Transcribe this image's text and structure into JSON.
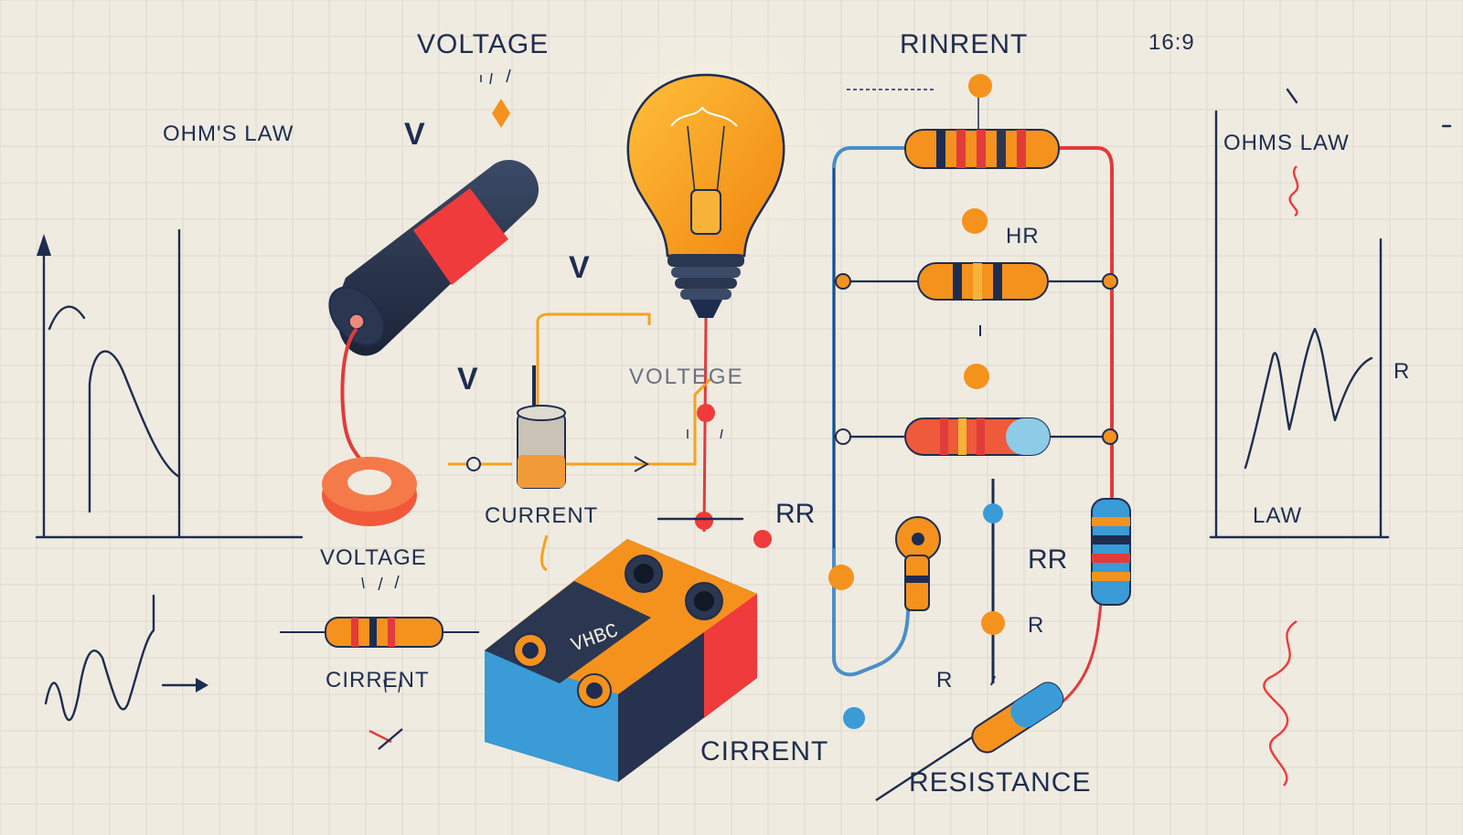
{
  "labels": {
    "voltage_top": "VOLTAGE",
    "rinrent_top": "RINRENT",
    "aspect": "16:9",
    "ohms_law_left": "OHM'S LAW",
    "ohms_law_right": "OHMS LAW",
    "v_top": "V",
    "v_mid": "V",
    "v_left": "V",
    "voltege": "VOLTEGE",
    "hr": "HR",
    "r_right": "R",
    "law": "LAW",
    "current": "CURRENT",
    "rr_mid": "RR",
    "voltage_bottom": "VOLTAGE",
    "cirrent_left": "CIRRENT",
    "rr_right": "RR",
    "r_small_1": "R",
    "r_small_2": "R",
    "cirrent_bottom": "CIRRENT",
    "resistance": "RESISTANCE",
    "battery_text": "VHBC"
  },
  "colors": {
    "background": "#efebe1",
    "ink": "#1e2d4f",
    "accent_orange": "#f5921e",
    "accent_red": "#ef3b3b",
    "accent_blue": "#3a9bd6",
    "wire_blue": "#4a8ec9"
  }
}
